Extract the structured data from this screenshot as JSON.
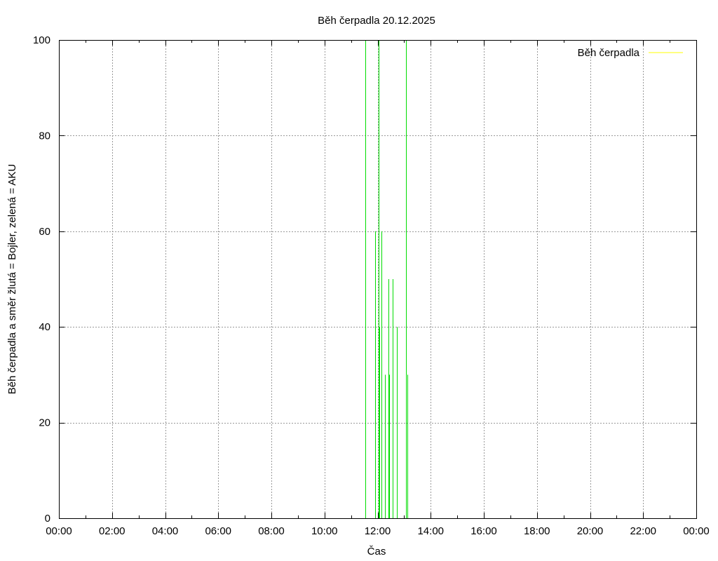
{
  "chart_data": {
    "type": "line",
    "title": "Běh čerpadla 20.12.2025",
    "xlabel": "Čas",
    "ylabel": "Běh čerpadla a směr žlutá = Bojler, zelená = AKU",
    "xlim": [
      0,
      24
    ],
    "ylim": [
      0,
      100
    ],
    "x_tick_labels": [
      "00:00",
      "02:00",
      "04:00",
      "06:00",
      "08:00",
      "10:00",
      "12:00",
      "14:00",
      "16:00",
      "18:00",
      "20:00",
      "22:00",
      "00:00"
    ],
    "y_tick_labels": [
      "0",
      "20",
      "40",
      "60",
      "80",
      "100"
    ],
    "grid": true,
    "legend": {
      "placement": "top-right",
      "entries": [
        {
          "label": "Běh čerpadla",
          "color": "#ffff00"
        }
      ]
    },
    "series": [
      {
        "name": "Běh čerpadla",
        "color": "#00dd00",
        "pulses": [
          {
            "time": "11:32",
            "value": 100
          },
          {
            "time": "11:55",
            "value": 60
          },
          {
            "time": "12:02",
            "value": 100
          },
          {
            "time": "12:04",
            "value": 40
          },
          {
            "time": "12:09",
            "value": 60
          },
          {
            "time": "12:17",
            "value": 30
          },
          {
            "time": "12:24",
            "value": 50
          },
          {
            "time": "12:26",
            "value": 30
          },
          {
            "time": "12:34",
            "value": 50
          },
          {
            "time": "12:44",
            "value": 40
          },
          {
            "time": "13:04",
            "value": 100
          },
          {
            "time": "13:07",
            "value": 30
          }
        ]
      }
    ]
  }
}
